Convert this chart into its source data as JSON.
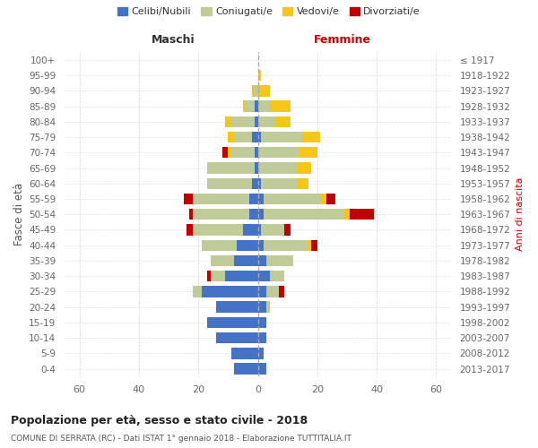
{
  "age_groups": [
    "100+",
    "95-99",
    "90-94",
    "85-89",
    "80-84",
    "75-79",
    "70-74",
    "65-69",
    "60-64",
    "55-59",
    "50-54",
    "45-49",
    "40-44",
    "35-39",
    "30-34",
    "25-29",
    "20-24",
    "15-19",
    "10-14",
    "5-9",
    "0-4"
  ],
  "birth_years": [
    "≤ 1917",
    "1918-1922",
    "1923-1927",
    "1928-1932",
    "1933-1937",
    "1938-1942",
    "1943-1947",
    "1948-1952",
    "1953-1957",
    "1958-1962",
    "1963-1967",
    "1968-1972",
    "1973-1977",
    "1978-1982",
    "1983-1987",
    "1988-1992",
    "1993-1997",
    "1998-2002",
    "2003-2007",
    "2008-2012",
    "2013-2017"
  ],
  "colors": {
    "celibe": "#4472C4",
    "coniugato": "#BFCC99",
    "vedovo": "#F5C518",
    "divorziato": "#C00000"
  },
  "maschi": {
    "celibe": [
      0,
      0,
      0,
      1,
      1,
      2,
      1,
      1,
      2,
      3,
      3,
      5,
      7,
      8,
      11,
      19,
      14,
      17,
      14,
      9,
      8
    ],
    "coniugato": [
      0,
      0,
      1,
      3,
      8,
      6,
      8,
      16,
      15,
      19,
      19,
      17,
      12,
      8,
      5,
      3,
      0,
      0,
      0,
      0,
      0
    ],
    "vedovo": [
      0,
      0,
      1,
      1,
      2,
      2,
      1,
      0,
      0,
      0,
      0,
      0,
      0,
      0,
      0,
      0,
      0,
      0,
      0,
      0,
      0
    ],
    "divorziato": [
      0,
      0,
      0,
      0,
      0,
      0,
      2,
      0,
      0,
      3,
      1,
      2,
      0,
      0,
      1,
      0,
      0,
      0,
      0,
      0,
      0
    ]
  },
  "femmine": {
    "nubile": [
      0,
      0,
      0,
      0,
      0,
      1,
      0,
      0,
      1,
      2,
      2,
      1,
      2,
      3,
      4,
      3,
      3,
      3,
      3,
      2,
      3
    ],
    "coniugata": [
      0,
      0,
      0,
      4,
      6,
      14,
      14,
      13,
      12,
      19,
      27,
      8,
      15,
      9,
      5,
      4,
      1,
      0,
      0,
      0,
      0
    ],
    "vedova": [
      0,
      1,
      4,
      7,
      5,
      6,
      6,
      5,
      4,
      2,
      2,
      0,
      1,
      0,
      0,
      0,
      0,
      0,
      0,
      0,
      0
    ],
    "divorziata": [
      0,
      0,
      0,
      0,
      0,
      0,
      0,
      0,
      0,
      3,
      8,
      2,
      2,
      0,
      0,
      2,
      0,
      0,
      0,
      0,
      0
    ]
  },
  "xlim": 65,
  "title": "Popolazione per età, sesso e stato civile - 2018",
  "subtitle": "COMUNE DI SERRATA (RC) - Dati ISTAT 1° gennaio 2018 - Elaborazione TUTTITALIA.IT",
  "ylabel_left": "Fasce di età",
  "ylabel_right": "Anni di nascita",
  "xlabel_left": "Maschi",
  "xlabel_right": "Femmine",
  "legend_labels": [
    "Celibi/Nubili",
    "Coniugati/e",
    "Vedovi/e",
    "Divorziati/e"
  ],
  "background": "#FFFFFF",
  "grid_color": "#CCCCCC"
}
